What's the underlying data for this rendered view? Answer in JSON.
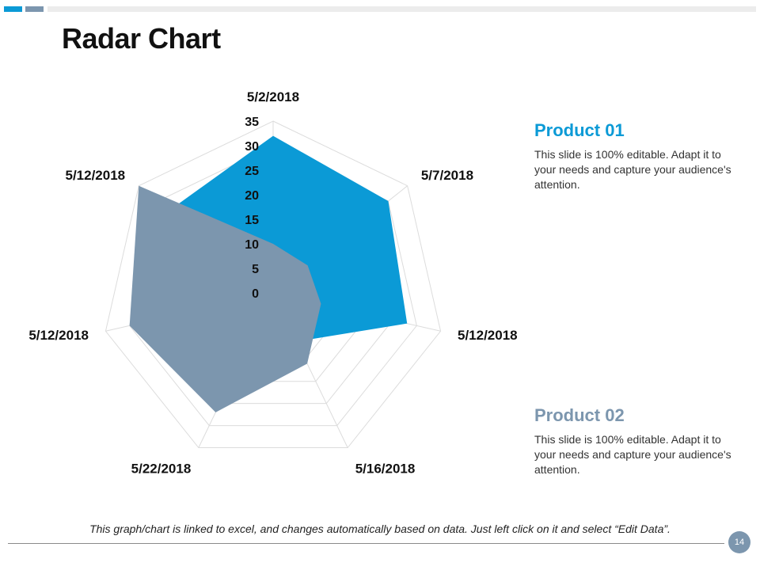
{
  "slide": {
    "title": "Radar Chart",
    "footer_note": "This graph/chart is linked to excel, and changes automatically based on data. Just left click on it and select “Edit Data”.",
    "page_number": "14"
  },
  "legend": [
    {
      "name": "Product 01",
      "description": "This slide is 100% editable. Adapt it to your needs and capture your audience's attention.",
      "color": "#0b9ad6"
    },
    {
      "name": "Product 02",
      "description": "This slide is 100% editable. Adapt it to your needs and capture your audience's attention.",
      "color": "#7c96ae"
    }
  ],
  "colors": {
    "accent_blue": "#0b9ad6",
    "accent_gray": "#7c96ae",
    "grid": "#dcdcdc"
  },
  "chart_data": {
    "type": "radar",
    "title": "",
    "categories": [
      "5/2/2018",
      "5/7/2018",
      "5/12/2018",
      "5/16/2018",
      "5/22/2018",
      "5/12/2018",
      "5/12/2018"
    ],
    "axis_min": 0,
    "axis_max": 35,
    "ticks": [
      0,
      5,
      10,
      15,
      20,
      25,
      30,
      35
    ],
    "gridlines": true,
    "series": [
      {
        "name": "Product 01",
        "color": "#0b9ad6",
        "values": [
          32,
          30,
          28,
          11,
          11,
          3,
          27
        ]
      },
      {
        "name": "Product 02",
        "color": "#7c96ae",
        "values": [
          10,
          9,
          10,
          16,
          27,
          30,
          35
        ]
      }
    ]
  }
}
